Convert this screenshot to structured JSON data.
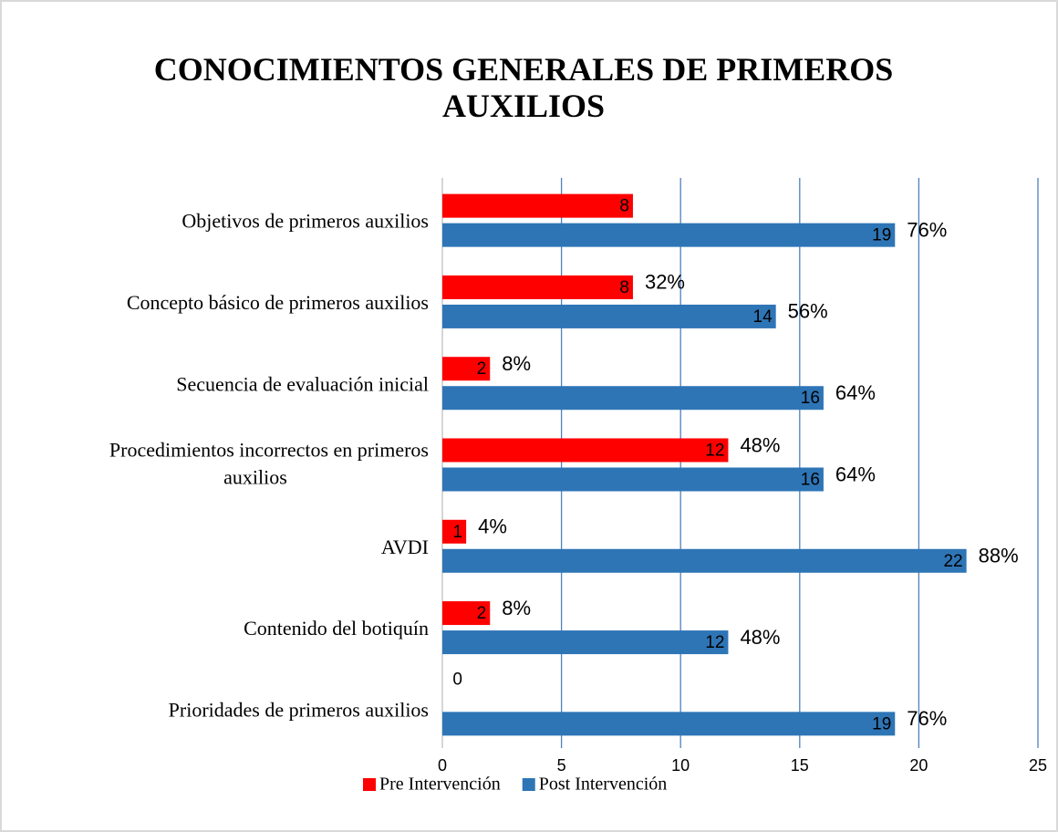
{
  "chart_data": {
    "type": "barh",
    "title": "CONOCIMIENTOS GENERALES DE PRIMEROS AUXILIOS",
    "categories": [
      "Objetivos de primeros auxilios",
      "Concepto básico de primeros auxilios",
      "Secuencia de evaluación inicial",
      "Procedimientos incorrectos en primeros auxilios",
      "AVDI",
      "Contenido del botiquín",
      "Prioridades de primeros auxilios"
    ],
    "series": [
      {
        "name": "Pre Intervención",
        "color": "#ff0000",
        "values": [
          8,
          8,
          2,
          12,
          1,
          2,
          0
        ],
        "percent_labels": [
          null,
          "32%",
          "8%",
          "48%",
          "4%",
          "8%",
          null
        ]
      },
      {
        "name": "Post Intervención",
        "color": "#2e75b6",
        "values": [
          19,
          14,
          16,
          16,
          22,
          12,
          19
        ],
        "percent_labels": [
          "76%",
          "56%",
          "64%",
          "64%",
          "88%",
          "48%",
          "76%"
        ]
      }
    ],
    "xlim": [
      0,
      25
    ],
    "xticks": [
      0,
      5,
      10,
      15,
      20,
      25
    ],
    "grid": true,
    "legend": "bottom"
  }
}
